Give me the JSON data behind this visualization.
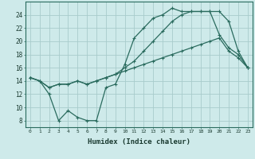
{
  "xlabel": "Humidex (Indice chaleur)",
  "background_color": "#ceeaea",
  "grid_color": "#a8cccc",
  "line_color": "#2a6b5e",
  "xlim": [
    -0.5,
    23.5
  ],
  "ylim": [
    7,
    26
  ],
  "xticks": [
    0,
    1,
    2,
    3,
    4,
    5,
    6,
    7,
    8,
    9,
    10,
    11,
    12,
    13,
    14,
    15,
    16,
    17,
    18,
    19,
    20,
    21,
    22,
    23
  ],
  "yticks": [
    8,
    10,
    12,
    14,
    16,
    18,
    20,
    22,
    24
  ],
  "line1_x": [
    0,
    1,
    2,
    3,
    4,
    5,
    6,
    7,
    8,
    9,
    10,
    11,
    12,
    13,
    14,
    15,
    16,
    17,
    18,
    19,
    20,
    21,
    22,
    23
  ],
  "line1_y": [
    14.5,
    14.0,
    13.0,
    13.5,
    13.5,
    14.0,
    13.5,
    14.0,
    14.5,
    15.0,
    15.5,
    16.0,
    16.5,
    17.0,
    17.5,
    18.0,
    18.5,
    19.0,
    19.5,
    20.0,
    20.5,
    18.5,
    17.5,
    16.0
  ],
  "line2_x": [
    0,
    1,
    2,
    3,
    4,
    5,
    6,
    7,
    8,
    9,
    10,
    11,
    12,
    13,
    14,
    15,
    16,
    17,
    18,
    19,
    20,
    21,
    22,
    23
  ],
  "line2_y": [
    14.5,
    14.0,
    13.0,
    13.5,
    13.5,
    14.0,
    13.5,
    14.0,
    14.5,
    15.0,
    16.0,
    17.0,
    18.5,
    20.0,
    21.5,
    23.0,
    24.0,
    24.5,
    24.5,
    24.5,
    24.5,
    23.0,
    18.5,
    16.0
  ],
  "line3_x": [
    0,
    1,
    2,
    3,
    4,
    5,
    6,
    7,
    8,
    9,
    10,
    11,
    12,
    13,
    14,
    15,
    16,
    17,
    18,
    19,
    20,
    21,
    22,
    23
  ],
  "line3_y": [
    14.5,
    14.0,
    12.0,
    8.0,
    9.5,
    8.5,
    8.0,
    8.0,
    13.0,
    13.5,
    16.5,
    20.5,
    22.0,
    23.5,
    24.0,
    25.0,
    24.5,
    24.5,
    24.5,
    24.5,
    21.0,
    19.0,
    18.0,
    16.0
  ]
}
